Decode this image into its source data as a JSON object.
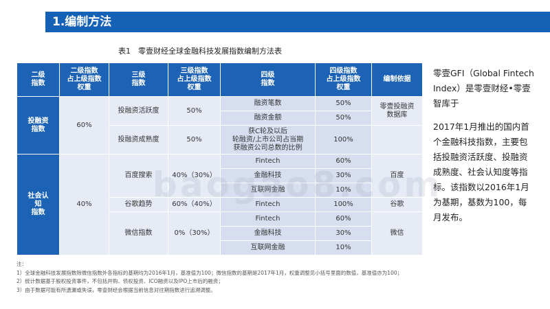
{
  "header": {
    "title": "1.编制方法"
  },
  "table": {
    "caption": "表1　零壹财经全球金融科技发展指数编制方法表",
    "headers": [
      "二级\n指数",
      "二级指数\n占上级指数\n权重",
      "三级\n指数",
      "三级指数\n占上级指数\n权重",
      "四级\n指数",
      "四级指数\n占上级指数\n权重",
      "编制依据"
    ],
    "groups": [
      {
        "l2": "投融资\n指数",
        "l2w": "60%",
        "l3": [
          {
            "name": "投融资活跃度",
            "w": "50%",
            "basis": "零壹投融资\n数据库",
            "l4": [
              {
                "name": "融资笔数",
                "w": "50%"
              },
              {
                "name": "融资金额",
                "w": "50%"
              }
            ]
          },
          {
            "name": "投融资成熟度",
            "w": "50%",
            "basis": "",
            "l4": [
              {
                "name": "获C轮及以后\n轮融资/上市公司占当期\n获融资公司总数的比例",
                "w": "100%"
              }
            ]
          }
        ]
      },
      {
        "l2": "社会认\n知\n指数",
        "l2w": "40%",
        "l3": [
          {
            "name": "百度搜索",
            "w": "40%（30%）",
            "basis": "百度",
            "l4": [
              {
                "name": "Fintech",
                "w": "60%"
              },
              {
                "name": "金融科技",
                "w": "30%"
              },
              {
                "name": "互联网金融",
                "w": "10%"
              }
            ]
          },
          {
            "name": "谷歌趋势",
            "w": "60%（40%）",
            "basis": "谷歌",
            "l4": [
              {
                "name": "Fintech",
                "w": "100%"
              }
            ]
          },
          {
            "name": "微信指数",
            "w": "0%（30%）",
            "basis": "微信",
            "l4": [
              {
                "name": "Fintech",
                "w": "60%"
              },
              {
                "name": "金融科技",
                "w": "30%"
              },
              {
                "name": "互联网金融",
                "w": "10%"
              }
            ]
          }
        ]
      }
    ]
  },
  "side_text": [
    "零壹GFI（Global Fintech Index）是零壹财经•零壹智库于",
    "2017年1月推出的国内首个金融科技指数，主要包括投融资活跃度、投融资成熟度、社会认知度等指标。该指数以2016年1月为基期，基数为100，每月发布。"
  ],
  "notes": [
    "注：",
    "1）全球金融科技发展指数除微信指数外各指标的基期均为2016年1月，基准值为100；微信指数的基期是2017年1月，权重调整见小括号里面的数值，基准值亦为100；",
    "2）统计数据基于股权投资事件，不包括并购、债权投资、ICO融资以及IPO上市后的融资；",
    "3）由于数据可能有所遗漏或失误，零壹财经会根据当前信息对往期指数进行追溯调整。"
  ],
  "watermark": "baogao8.com"
}
